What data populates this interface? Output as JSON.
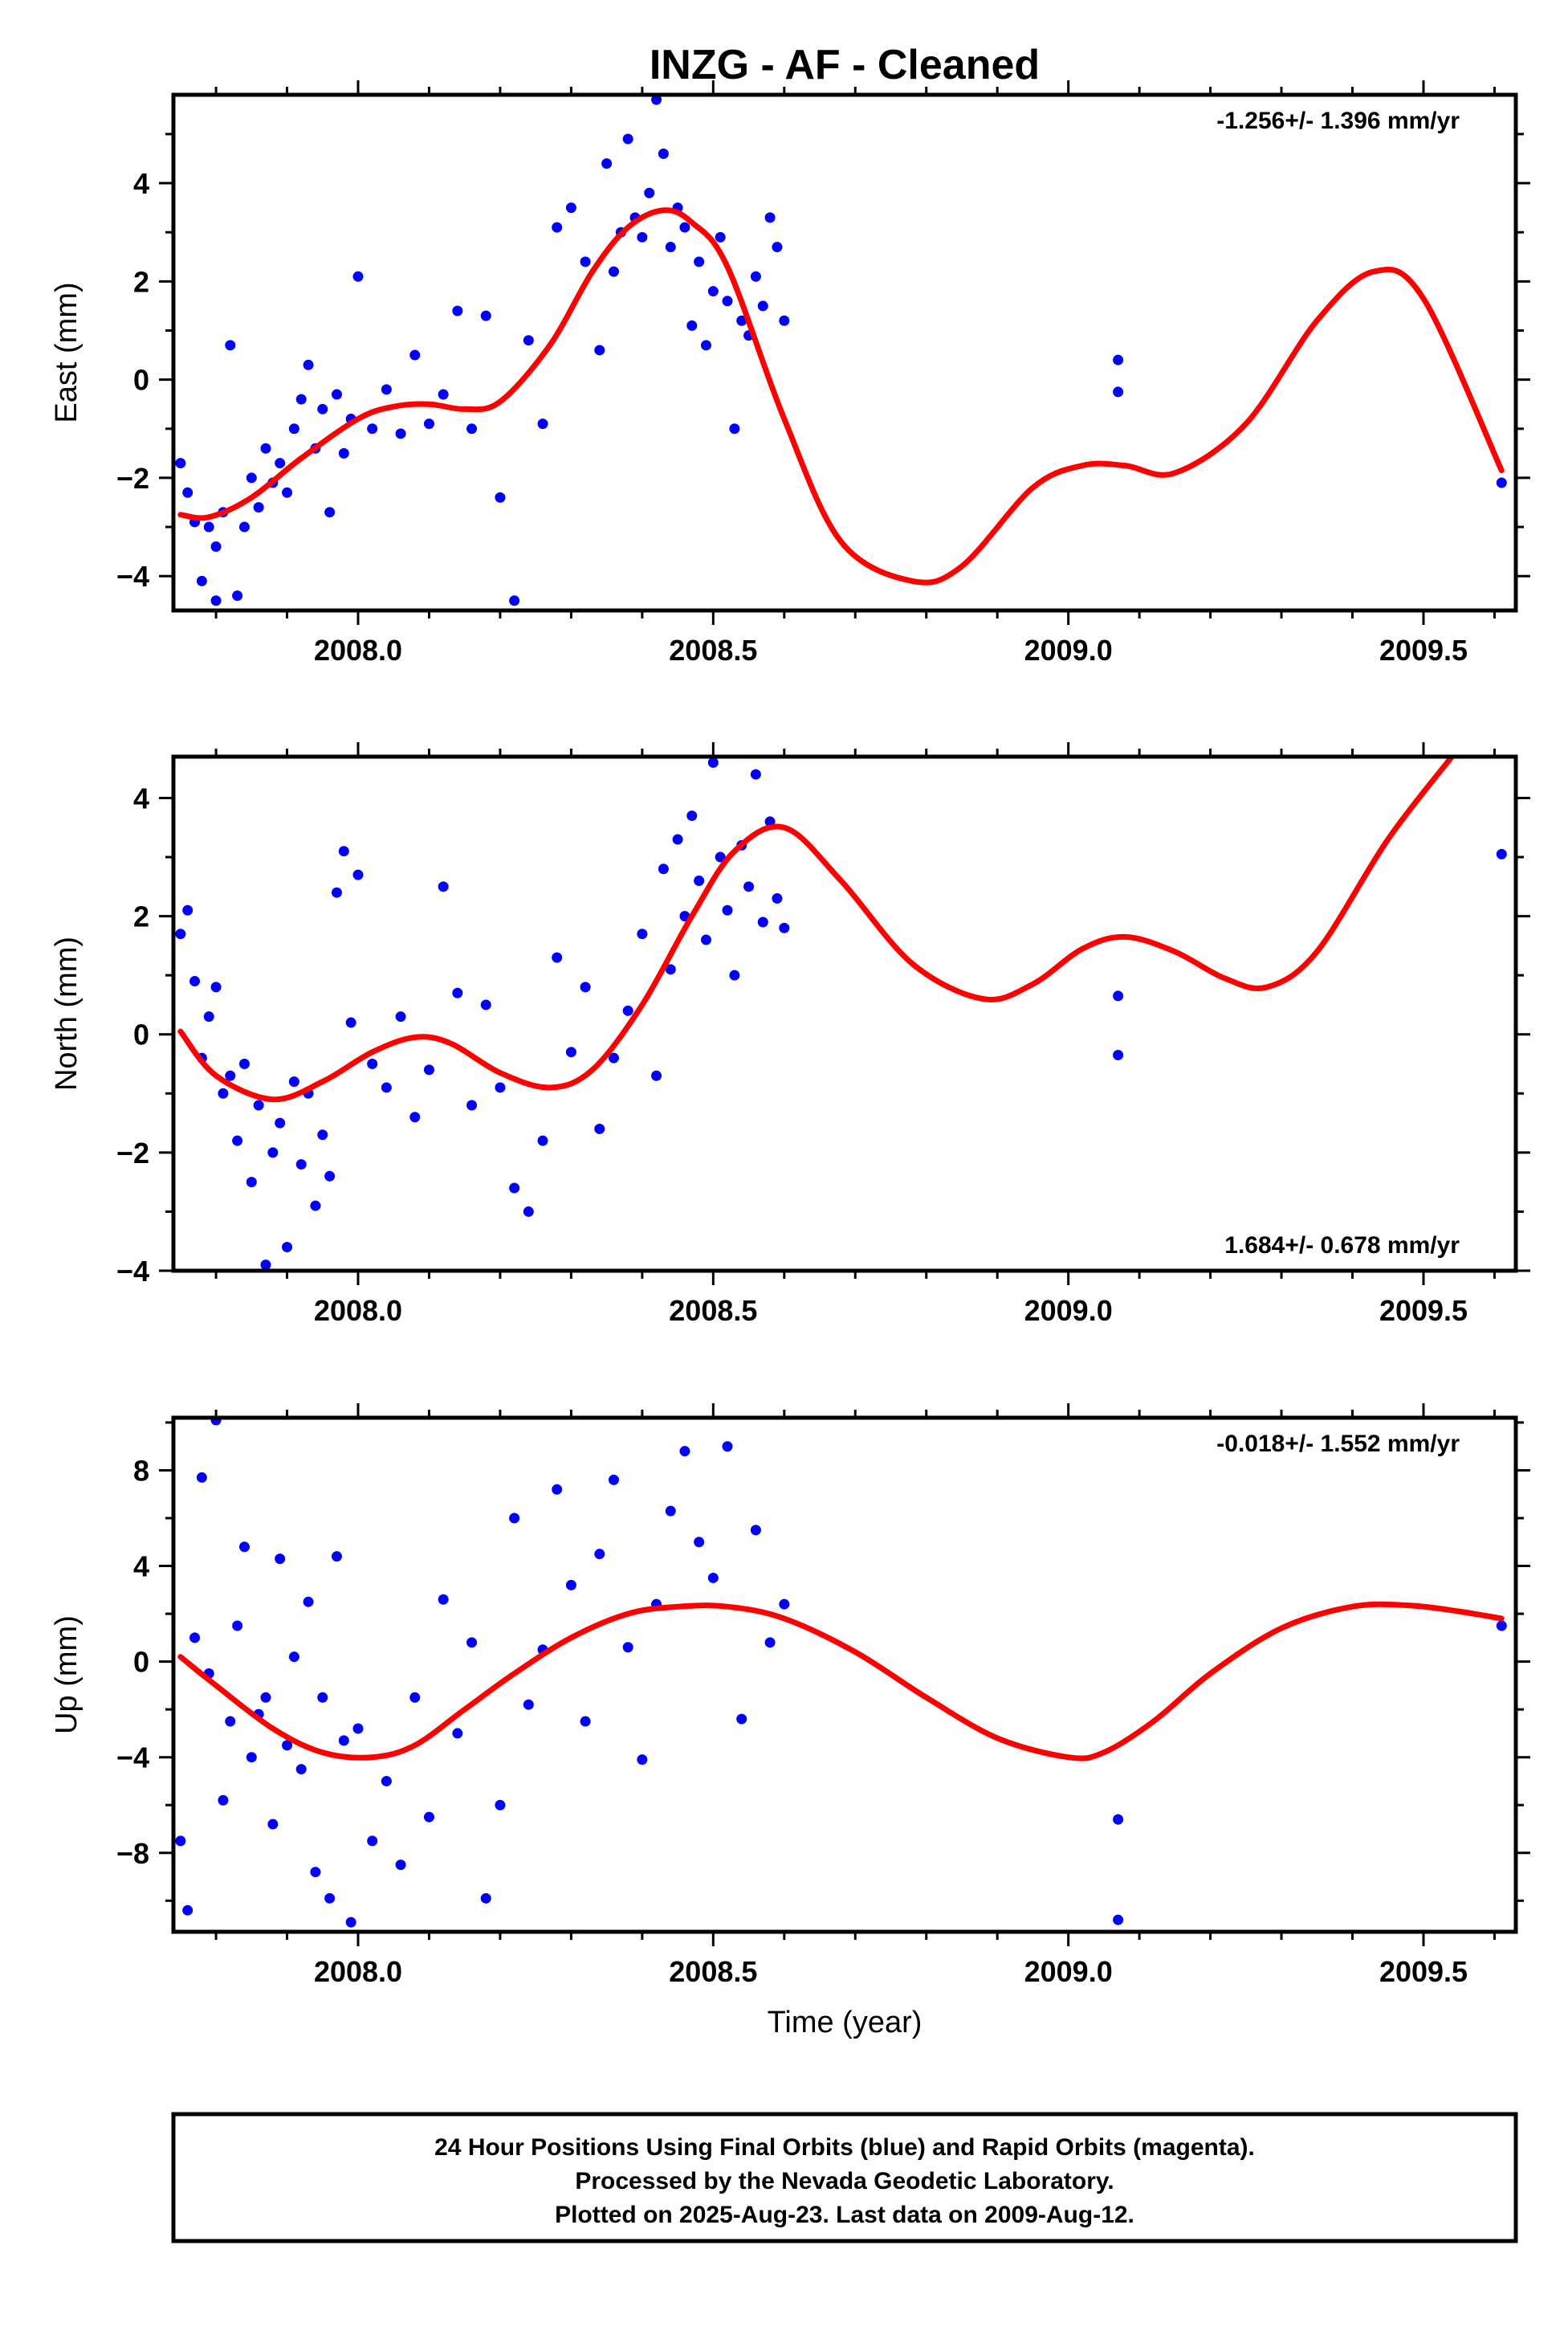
{
  "title": "INZG  - AF - Cleaned",
  "colors": {
    "points": "#0000ff",
    "fit": "#ff0000",
    "frame": "#000000"
  },
  "footer": {
    "line1": "24 Hour Positions Using Final Orbits (blue) and Rapid Orbits (magenta).",
    "line2": "Processed by the Nevada Geodetic Laboratory.",
    "line3": "Plotted on 2025-Aug-23. Last data on 2009-Aug-12."
  },
  "chart_data": [
    {
      "type": "scatter",
      "ylabel": "East (mm)",
      "xlabel": "",
      "xlim": [
        2007.74,
        2009.63
      ],
      "ylim": [
        -4.7,
        5.8
      ],
      "xticks": [
        "2008.0",
        "2008.5",
        "2009.0",
        "2009.5"
      ],
      "yticks": [
        -4,
        -2,
        0,
        2,
        4
      ],
      "rate_text": "-1.256+/- 1.396 mm/yr",
      "rate_position": "top-right",
      "fit_curve": {
        "x": [
          2007.75,
          2007.79,
          2007.85,
          2007.92,
          2008.0,
          2008.05,
          2008.1,
          2008.15,
          2008.2,
          2008.27,
          2008.33,
          2008.38,
          2008.43,
          2008.47,
          2008.52,
          2008.6,
          2008.68,
          2008.78,
          2008.85,
          2008.95,
          2009.02,
          2009.08,
          2009.15,
          2009.25,
          2009.35,
          2009.43,
          2009.5,
          2009.61
        ],
        "y": [
          -2.75,
          -2.8,
          -2.4,
          -1.6,
          -0.8,
          -0.55,
          -0.5,
          -0.6,
          -0.45,
          0.7,
          2.2,
          3.1,
          3.45,
          3.2,
          2.3,
          -0.8,
          -3.3,
          -4.1,
          -3.8,
          -2.2,
          -1.75,
          -1.75,
          -1.9,
          -0.9,
          1.2,
          2.2,
          1.65,
          -1.85
        ]
      },
      "x": [
        2007.75,
        2007.76,
        2007.77,
        2007.78,
        2007.79,
        2007.8,
        2007.8,
        2007.81,
        2007.82,
        2007.83,
        2007.84,
        2007.85,
        2007.86,
        2007.87,
        2007.88,
        2007.89,
        2007.9,
        2007.91,
        2007.92,
        2007.93,
        2007.94,
        2007.95,
        2007.96,
        2007.97,
        2007.98,
        2007.99,
        2008.0,
        2008.02,
        2008.04,
        2008.06,
        2008.08,
        2008.1,
        2008.12,
        2008.14,
        2008.16,
        2008.18,
        2008.2,
        2008.22,
        2008.24,
        2008.26,
        2008.28,
        2008.3,
        2008.32,
        2008.34,
        2008.35,
        2008.36,
        2008.37,
        2008.38,
        2008.39,
        2008.4,
        2008.41,
        2008.42,
        2008.43,
        2008.44,
        2008.45,
        2008.46,
        2008.47,
        2008.48,
        2008.49,
        2008.5,
        2008.51,
        2008.52,
        2008.53,
        2008.54,
        2008.55,
        2008.56,
        2008.57,
        2008.58,
        2008.59,
        2008.6,
        2009.07,
        2009.07,
        2009.61
      ],
      "y": [
        -1.7,
        -2.3,
        -2.9,
        -4.1,
        -3.0,
        -3.4,
        -4.5,
        -2.7,
        0.7,
        -4.4,
        -3.0,
        -2.0,
        -2.6,
        -1.4,
        -2.1,
        -1.7,
        -2.3,
        -1.0,
        -0.4,
        0.3,
        -1.4,
        -0.6,
        -2.7,
        -0.3,
        -1.5,
        -0.8,
        2.1,
        -1.0,
        -0.2,
        -1.1,
        0.5,
        -0.9,
        -0.3,
        1.4,
        -1.0,
        1.3,
        -2.4,
        -4.5,
        0.8,
        -0.9,
        3.1,
        3.5,
        2.4,
        0.6,
        4.4,
        2.2,
        3.0,
        4.9,
        3.3,
        2.9,
        3.8,
        5.7,
        4.6,
        2.7,
        3.5,
        3.1,
        1.1,
        2.4,
        0.7,
        1.8,
        2.9,
        1.6,
        -1.0,
        1.2,
        0.9,
        2.1,
        1.5,
        3.3,
        2.7,
        1.2,
        0.4,
        -0.25,
        -2.1
      ]
    },
    {
      "type": "scatter",
      "ylabel": "North (mm)",
      "xlabel": "",
      "xlim": [
        2007.74,
        2009.63
      ],
      "ylim": [
        -4.0,
        4.7
      ],
      "xticks": [
        "2008.0",
        "2008.5",
        "2009.0",
        "2009.5"
      ],
      "yticks": [
        -4,
        -2,
        0,
        2,
        4
      ],
      "rate_text": "1.684+/- 0.678 mm/yr",
      "rate_position": "bottom-right",
      "fit_curve": {
        "x": [
          2007.75,
          2007.8,
          2007.88,
          2007.95,
          2008.02,
          2008.08,
          2008.13,
          2008.2,
          2008.27,
          2008.33,
          2008.4,
          2008.47,
          2008.53,
          2008.6,
          2008.68,
          2008.78,
          2008.88,
          2008.95,
          2009.02,
          2009.08,
          2009.15,
          2009.22,
          2009.28,
          2009.35,
          2009.45,
          2009.54
        ],
        "y": [
          0.05,
          -0.7,
          -1.1,
          -0.8,
          -0.3,
          -0.05,
          -0.15,
          -0.65,
          -0.9,
          -0.6,
          0.5,
          2.0,
          3.1,
          3.5,
          2.6,
          1.2,
          0.6,
          0.85,
          1.45,
          1.65,
          1.4,
          0.95,
          0.8,
          1.4,
          3.3,
          4.7
        ]
      },
      "x": [
        2007.75,
        2007.76,
        2007.77,
        2007.78,
        2007.79,
        2007.8,
        2007.81,
        2007.82,
        2007.83,
        2007.84,
        2007.85,
        2007.86,
        2007.87,
        2007.88,
        2007.89,
        2007.9,
        2007.91,
        2007.92,
        2007.93,
        2007.94,
        2007.95,
        2007.96,
        2007.97,
        2007.98,
        2007.99,
        2008.0,
        2008.02,
        2008.04,
        2008.06,
        2008.08,
        2008.1,
        2008.12,
        2008.14,
        2008.16,
        2008.18,
        2008.2,
        2008.22,
        2008.24,
        2008.26,
        2008.28,
        2008.3,
        2008.32,
        2008.34,
        2008.36,
        2008.38,
        2008.4,
        2008.42,
        2008.43,
        2008.44,
        2008.45,
        2008.46,
        2008.47,
        2008.48,
        2008.49,
        2008.5,
        2008.51,
        2008.52,
        2008.53,
        2008.54,
        2008.55,
        2008.56,
        2008.57,
        2008.58,
        2008.59,
        2008.6,
        2009.07,
        2009.07,
        2009.61
      ],
      "y": [
        1.7,
        2.1,
        0.9,
        -0.4,
        0.3,
        0.8,
        -1.0,
        -0.7,
        -1.8,
        -0.5,
        -2.5,
        -1.2,
        -3.9,
        -2.0,
        -1.5,
        -3.6,
        -0.8,
        -2.2,
        -1.0,
        -2.9,
        -1.7,
        -2.4,
        2.4,
        3.1,
        0.2,
        2.7,
        -0.5,
        -0.9,
        0.3,
        -1.4,
        -0.6,
        2.5,
        0.7,
        -1.2,
        0.5,
        -0.9,
        -2.6,
        -3.0,
        -1.8,
        1.3,
        -0.3,
        0.8,
        -1.6,
        -0.4,
        0.4,
        1.7,
        -0.7,
        2.8,
        1.1,
        3.3,
        2.0,
        3.7,
        2.6,
        1.6,
        4.6,
        3.0,
        2.1,
        1.0,
        3.2,
        2.5,
        4.4,
        1.9,
        3.6,
        2.3,
        1.8,
        0.65,
        -0.35,
        3.05
      ]
    },
    {
      "type": "scatter",
      "ylabel": "Up (mm)",
      "xlabel": "Time (year)",
      "xlim": [
        2007.74,
        2009.63
      ],
      "ylim": [
        -11.3,
        10.2
      ],
      "xticks": [
        "2008.0",
        "2008.5",
        "2009.0",
        "2009.5"
      ],
      "yticks": [
        -8,
        -4,
        0,
        4,
        8
      ],
      "rate_text": "-0.018+/- 1.552 mm/yr",
      "rate_position": "top-right",
      "fit_curve": {
        "x": [
          2007.75,
          2007.8,
          2007.88,
          2007.95,
          2008.02,
          2008.08,
          2008.15,
          2008.22,
          2008.3,
          2008.38,
          2008.45,
          2008.52,
          2008.6,
          2008.7,
          2008.8,
          2008.9,
          2009.0,
          2009.05,
          2009.12,
          2009.2,
          2009.3,
          2009.4,
          2009.48,
          2009.55,
          2009.61
        ],
        "y": [
          0.2,
          -1.0,
          -2.8,
          -3.8,
          -4.0,
          -3.5,
          -2.0,
          -0.5,
          1.0,
          2.0,
          2.3,
          2.3,
          1.8,
          0.4,
          -1.5,
          -3.2,
          -4.0,
          -3.8,
          -2.5,
          -0.5,
          1.4,
          2.3,
          2.35,
          2.1,
          1.8
        ]
      },
      "x": [
        2007.75,
        2007.76,
        2007.77,
        2007.78,
        2007.79,
        2007.8,
        2007.81,
        2007.82,
        2007.83,
        2007.84,
        2007.85,
        2007.86,
        2007.87,
        2007.88,
        2007.89,
        2007.9,
        2007.91,
        2007.92,
        2007.93,
        2007.94,
        2007.95,
        2007.96,
        2007.97,
        2007.98,
        2007.99,
        2008.0,
        2008.02,
        2008.04,
        2008.06,
        2008.08,
        2008.1,
        2008.12,
        2008.14,
        2008.16,
        2008.18,
        2008.2,
        2008.22,
        2008.24,
        2008.26,
        2008.28,
        2008.3,
        2008.32,
        2008.34,
        2008.36,
        2008.38,
        2008.4,
        2008.42,
        2008.44,
        2008.46,
        2008.48,
        2008.5,
        2008.52,
        2008.54,
        2008.56,
        2008.58,
        2008.6,
        2009.07,
        2009.07,
        2009.61
      ],
      "y": [
        -7.5,
        -10.4,
        1.0,
        7.7,
        -0.5,
        10.1,
        -5.8,
        -2.5,
        1.5,
        4.8,
        -4.0,
        -2.2,
        -1.5,
        -6.8,
        4.3,
        -3.5,
        0.2,
        -4.5,
        2.5,
        -8.8,
        -1.5,
        -9.9,
        4.4,
        -3.3,
        -10.9,
        -2.8,
        -7.5,
        -5.0,
        -8.5,
        -1.5,
        -6.5,
        2.6,
        -3.0,
        0.8,
        -9.9,
        -6.0,
        6.0,
        -1.8,
        0.5,
        7.2,
        3.2,
        -2.5,
        4.5,
        7.6,
        0.6,
        -4.1,
        2.4,
        6.3,
        8.8,
        5.0,
        3.5,
        9.0,
        -2.4,
        5.5,
        0.8,
        2.4,
        -6.6,
        -10.8,
        1.5
      ]
    }
  ]
}
